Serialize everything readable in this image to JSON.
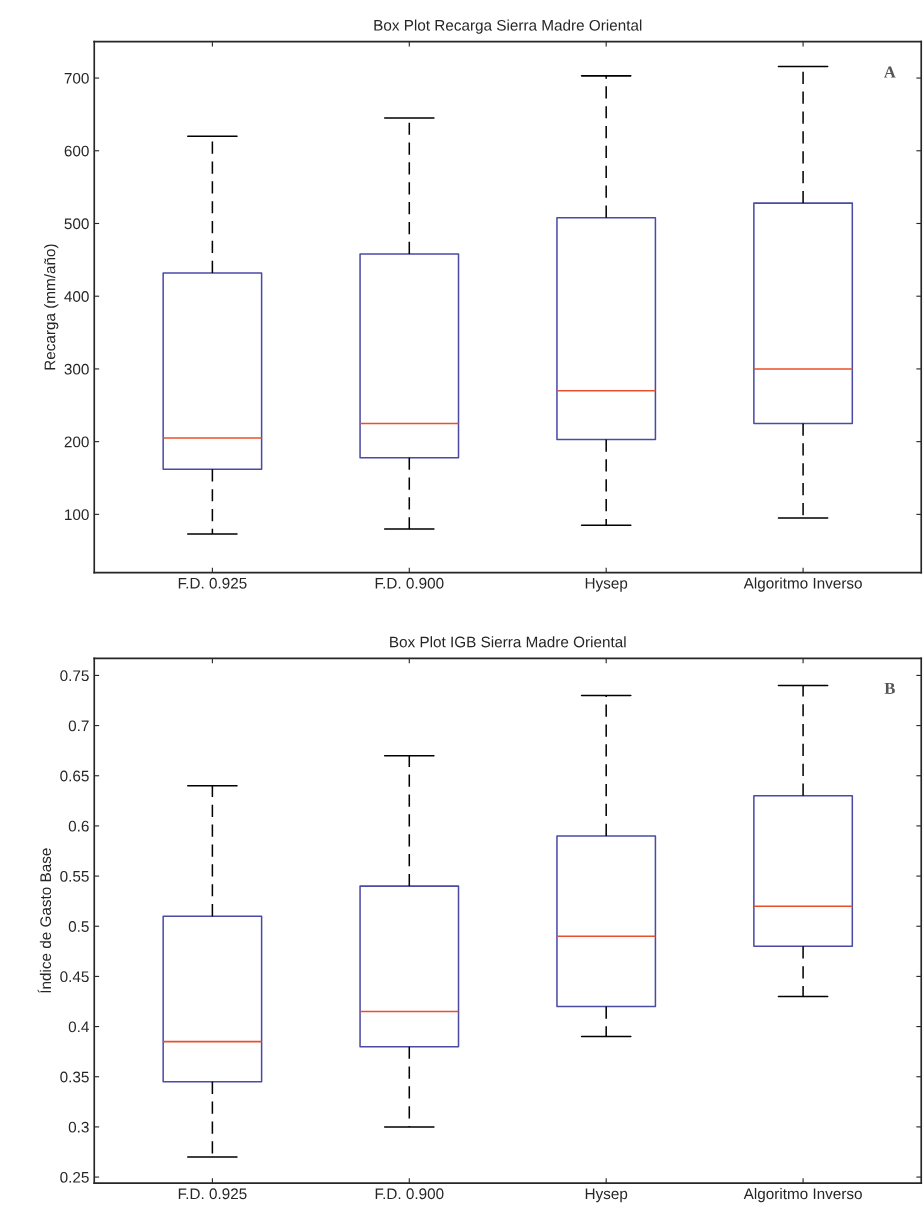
{
  "chart_data": [
    {
      "type": "box",
      "title": "Box Plot Recarga Sierra Madre Oriental",
      "ylabel": "Recarga (mm/año)",
      "categories": [
        "F.D. 0.925",
        "F.D. 0.900",
        "Hysep",
        "Algoritmo Inverso"
      ],
      "series": [
        {
          "color": "#4b4ba6",
          "boxes": [
            {
              "low": 73,
              "q1": 162,
              "median": 205,
              "q3": 432,
              "high": 620
            },
            {
              "low": 80,
              "q1": 178,
              "median": 225,
              "q3": 458,
              "high": 645
            },
            {
              "low": 85,
              "q1": 203,
              "median": 270,
              "q3": 508,
              "high": 703
            },
            {
              "low": 95,
              "q1": 225,
              "median": 300,
              "q3": 528,
              "high": 716
            }
          ]
        }
      ],
      "ylim": [
        20,
        750
      ],
      "yticks": [
        100,
        200,
        300,
        400,
        500,
        600,
        700
      ],
      "annotations": [
        "A"
      ]
    },
    {
      "type": "box",
      "title": "Box Plot IGB Sierra Madre Oriental",
      "ylabel": "Índice de Gasto Base",
      "categories": [
        "F.D. 0.925",
        "F.D. 0.900",
        "Hysep",
        "Algoritmo Inverso"
      ],
      "series": [
        {
          "color": "#4b4ba6",
          "boxes": [
            {
              "low": 0.27,
              "q1": 0.345,
              "median": 0.385,
              "q3": 0.51,
              "high": 0.64
            },
            {
              "low": 0.3,
              "q1": 0.38,
              "median": 0.415,
              "q3": 0.54,
              "high": 0.67
            },
            {
              "low": 0.39,
              "q1": 0.42,
              "median": 0.49,
              "q3": 0.59,
              "high": 0.73
            },
            {
              "low": 0.43,
              "q1": 0.48,
              "median": 0.52,
              "q3": 0.63,
              "high": 0.74
            }
          ]
        }
      ],
      "ylim": [
        0.244,
        0.767
      ],
      "yticks": [
        0.25,
        0.3,
        0.35,
        0.4,
        0.45,
        0.5,
        0.55,
        0.6,
        0.65,
        0.7,
        0.75
      ],
      "annotations": [
        "B"
      ]
    }
  ]
}
